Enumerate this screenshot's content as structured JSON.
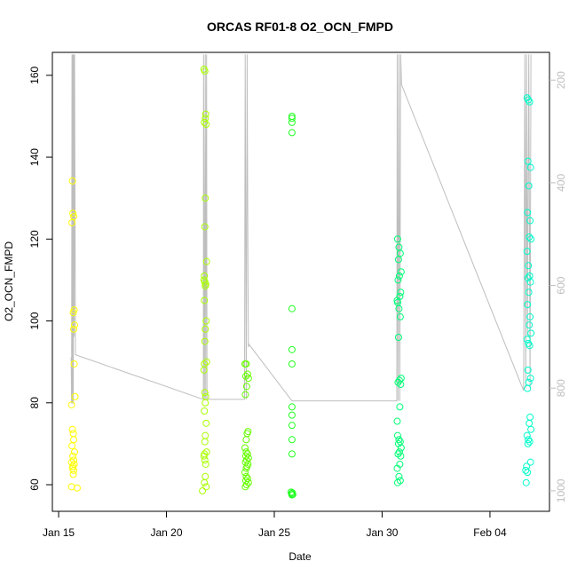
{
  "chart_data": {
    "type": "scatter",
    "title": "ORCAS RF01-8 O2_OCN_FMPD",
    "x_label": "Date",
    "y_label": "O2_OCN_FMPD",
    "xlim": [
      14.71,
      37.76
    ],
    "xticks": [
      {
        "value": 15,
        "label": "Jan 15"
      },
      {
        "value": 20,
        "label": "Jan 20"
      },
      {
        "value": 25,
        "label": "Jan 25"
      },
      {
        "value": 30,
        "label": "Jan 30"
      },
      {
        "value": 35,
        "label": "Feb 04"
      }
    ],
    "ylim": [
      53.5,
      165.6
    ],
    "yticks": [
      60,
      80,
      100,
      120,
      140,
      160
    ],
    "y2lim": [
      1040,
      146
    ],
    "y2ticks": [
      200,
      400,
      600,
      800,
      1000
    ],
    "y2_tick_color": "#bebebe",
    "grid": false,
    "series": [
      {
        "type": "line",
        "axis": "y2",
        "color": "#bebebe",
        "x": [
          15.58,
          15.6,
          15.62,
          15.64,
          15.66,
          15.68,
          15.7,
          15.72,
          15.74,
          15.78,
          21.71,
          21.72,
          21.76,
          21.8,
          21.82,
          21.86,
          21.88,
          23.62,
          23.65,
          23.7,
          23.74,
          23.78,
          23.8,
          23.83,
          25.82,
          30.68,
          30.7,
          30.74,
          30.78,
          30.82,
          30.86,
          30.9,
          36.56,
          36.62,
          36.66,
          36.7,
          36.74,
          36.8,
          36.86,
          36.9
        ],
        "values": [
          740,
          830,
          150,
          830,
          150,
          830,
          150,
          700,
          150,
          735,
          822,
          150,
          822,
          150,
          822,
          150,
          822,
          822,
          150,
          822,
          150,
          580,
          720,
          715,
          825,
          825,
          150,
          825,
          150,
          825,
          150,
          209,
          805,
          150,
          800,
          150,
          700,
          150,
          800,
          150
        ]
      },
      {
        "color": "#ffff00",
        "x": [
          15.64,
          15.66,
          15.7,
          15.62,
          15.72,
          15.68,
          15.74,
          15.7,
          15.72,
          15.76,
          15.6,
          15.64,
          15.68,
          15.7,
          15.62,
          15.74,
          15.66,
          15.7,
          15.6,
          15.72,
          15.66,
          15.64,
          15.7,
          15.68,
          15.6,
          15.86
        ],
        "values": [
          134.2,
          126.3,
          125.5,
          124,
          102.7,
          102,
          99,
          98,
          89.5,
          81.5,
          79.5,
          73.5,
          72.5,
          71,
          69.5,
          68,
          67,
          66,
          65.5,
          65,
          64.5,
          64,
          63.5,
          62.5,
          59.5,
          59.2
        ]
      },
      {
        "color": "#aaff00",
        "x": [
          21.74,
          21.78,
          21.82,
          21.8,
          21.76,
          21.84,
          21.8,
          21.78,
          21.86,
          21.76,
          21.74,
          21.78,
          21.82,
          21.8,
          21.76,
          21.84,
          21.8,
          21.78,
          21.86,
          21.76,
          21.74,
          21.78,
          21.82,
          21.8,
          21.76,
          21.84,
          21.8,
          21.78,
          21.86,
          21.76,
          21.74,
          21.78,
          21.82,
          21.8,
          21.76,
          21.84,
          21.67
        ],
        "values": [
          161.5,
          161,
          150.5,
          149.5,
          148.5,
          148,
          130,
          123,
          114.5,
          111,
          110,
          109.5,
          109,
          108.5,
          105,
          100,
          98,
          95,
          90,
          89.5,
          88,
          82.5,
          81.5,
          80,
          78,
          75,
          72,
          70.5,
          68,
          67.5,
          67,
          66,
          65,
          62,
          60.5,
          59.5,
          58.5
        ]
      },
      {
        "color": "#66ff00",
        "x": [
          23.64,
          23.7,
          23.76,
          23.68,
          23.8,
          23.72,
          23.66,
          23.78,
          23.74,
          23.7,
          23.64,
          23.7,
          23.76,
          23.68,
          23.8,
          23.72,
          23.66,
          23.78,
          23.74,
          23.7,
          23.64,
          23.7,
          23.76,
          23.68,
          23.8,
          23.72,
          23.66
        ],
        "values": [
          89.5,
          89.5,
          87,
          86.5,
          86,
          84,
          82,
          73,
          72.5,
          71,
          69,
          68,
          67.5,
          67,
          66.5,
          66,
          65.5,
          65,
          64.5,
          64,
          63,
          62,
          61.5,
          61,
          60.5,
          60,
          59.5
        ]
      },
      {
        "color": "#22ff22",
        "x": [
          25.82,
          25.82,
          25.82,
          25.82,
          25.82,
          25.82,
          25.82,
          25.82,
          25.82,
          25.82,
          25.82,
          25.82,
          25.78,
          25.84,
          25.8,
          25.86,
          25.82
        ],
        "values": [
          150,
          149.5,
          148.5,
          146,
          103,
          93,
          89.5,
          79,
          77,
          74.5,
          71,
          67.5,
          58.2,
          58,
          57.8,
          57.6,
          57.5
        ]
      },
      {
        "color": "#00ff77",
        "x": [
          30.72,
          30.78,
          30.84,
          30.76,
          30.88,
          30.8,
          30.74,
          30.86,
          30.82,
          30.7,
          30.72,
          30.78,
          30.84,
          30.76,
          30.88,
          30.8,
          30.74,
          30.86,
          30.82,
          30.7,
          30.72,
          30.78,
          30.84,
          30.76,
          30.88,
          30.8,
          30.74,
          30.86,
          30.82,
          30.7,
          30.78,
          30.84,
          30.72
        ],
        "values": [
          120,
          118,
          116.5,
          115,
          112,
          111,
          110,
          107,
          106,
          105,
          104.5,
          103,
          101,
          96,
          86,
          85.5,
          85,
          84.5,
          79,
          75.5,
          72,
          71,
          70.5,
          70,
          69,
          68,
          67.5,
          67,
          65,
          64,
          62,
          61,
          60.5
        ]
      },
      {
        "color": "#00ffcc",
        "x": [
          36.72,
          36.78,
          36.84,
          36.76,
          36.88,
          36.8,
          36.74,
          36.86,
          36.82,
          36.9,
          36.72,
          36.78,
          36.84,
          36.76,
          36.88,
          36.8,
          36.74,
          36.86,
          36.82,
          36.9,
          36.72,
          36.78,
          36.84,
          36.76,
          36.88,
          36.8,
          36.74,
          36.86,
          36.82,
          36.9,
          36.72,
          36.78,
          36.84,
          36.76,
          36.88,
          36.7,
          36.66,
          36.74,
          36.68
        ],
        "values": [
          154.5,
          154,
          153.5,
          139,
          137.5,
          133,
          126.5,
          124.5,
          120.5,
          120,
          117,
          113.5,
          111,
          110.5,
          109.5,
          107,
          104,
          101,
          99,
          97,
          95.5,
          94.5,
          94,
          88,
          86,
          85,
          83.5,
          76.5,
          75,
          73.5,
          72,
          71,
          70.5,
          70,
          65.5,
          64.5,
          63.5,
          63,
          60.5
        ]
      }
    ]
  }
}
